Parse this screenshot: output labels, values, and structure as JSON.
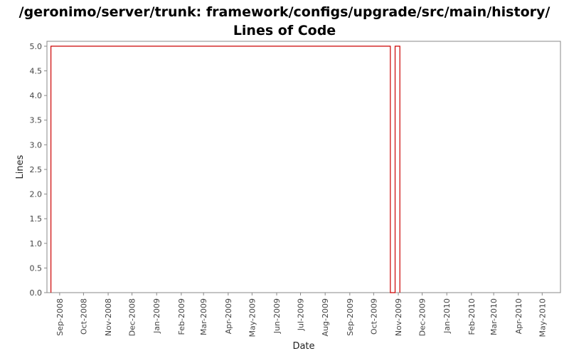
{
  "chart_data": {
    "type": "line",
    "title_line1": "/geronimo/server/trunk: framework/configs/upgrade/src/main/history/",
    "title_line2": "Lines of Code",
    "xlabel": "Date",
    "ylabel": "Lines",
    "ylim": [
      0,
      5.1
    ],
    "yticks": [
      "0.0",
      "0.5",
      "1.0",
      "1.5",
      "2.0",
      "2.5",
      "3.0",
      "3.5",
      "4.0",
      "4.5",
      "5.0"
    ],
    "xlim": [
      "2008-08-16",
      "2010-05-24"
    ],
    "xticks": [
      {
        "label": "Sep-2008",
        "date": "2008-09-01"
      },
      {
        "label": "Oct-2008",
        "date": "2008-10-01"
      },
      {
        "label": "Nov-2008",
        "date": "2008-11-01"
      },
      {
        "label": "Dec-2008",
        "date": "2008-12-01"
      },
      {
        "label": "Jan-2009",
        "date": "2009-01-01"
      },
      {
        "label": "Feb-2009",
        "date": "2009-02-01"
      },
      {
        "label": "Mar-2009",
        "date": "2009-03-01"
      },
      {
        "label": "Apr-2009",
        "date": "2009-04-01"
      },
      {
        "label": "May-2009",
        "date": "2009-05-01"
      },
      {
        "label": "Jun-2009",
        "date": "2009-06-01"
      },
      {
        "label": "Jul-2009",
        "date": "2009-07-01"
      },
      {
        "label": "Aug-2009",
        "date": "2009-08-01"
      },
      {
        "label": "Sep-2009",
        "date": "2009-09-01"
      },
      {
        "label": "Oct-2009",
        "date": "2009-10-01"
      },
      {
        "label": "Nov-2009",
        "date": "2009-11-01"
      },
      {
        "label": "Dec-2009",
        "date": "2009-12-01"
      },
      {
        "label": "Jan-2010",
        "date": "2010-01-01"
      },
      {
        "label": "Feb-2010",
        "date": "2010-02-01"
      },
      {
        "label": "Mar-2010",
        "date": "2010-03-01"
      },
      {
        "label": "Apr-2010",
        "date": "2010-04-01"
      },
      {
        "label": "May-2010",
        "date": "2010-05-01"
      }
    ],
    "series": [
      {
        "color": "#cc0000",
        "points": [
          {
            "date": "2008-08-21",
            "value": 0
          },
          {
            "date": "2008-08-21",
            "value": 5
          },
          {
            "date": "2009-10-22",
            "value": 5
          },
          {
            "date": "2009-10-22",
            "value": 0
          },
          {
            "date": "2009-10-28",
            "value": 0
          },
          {
            "date": "2009-10-28",
            "value": 5
          },
          {
            "date": "2009-11-03",
            "value": 5
          },
          {
            "date": "2009-11-03",
            "value": 0
          }
        ]
      }
    ]
  }
}
